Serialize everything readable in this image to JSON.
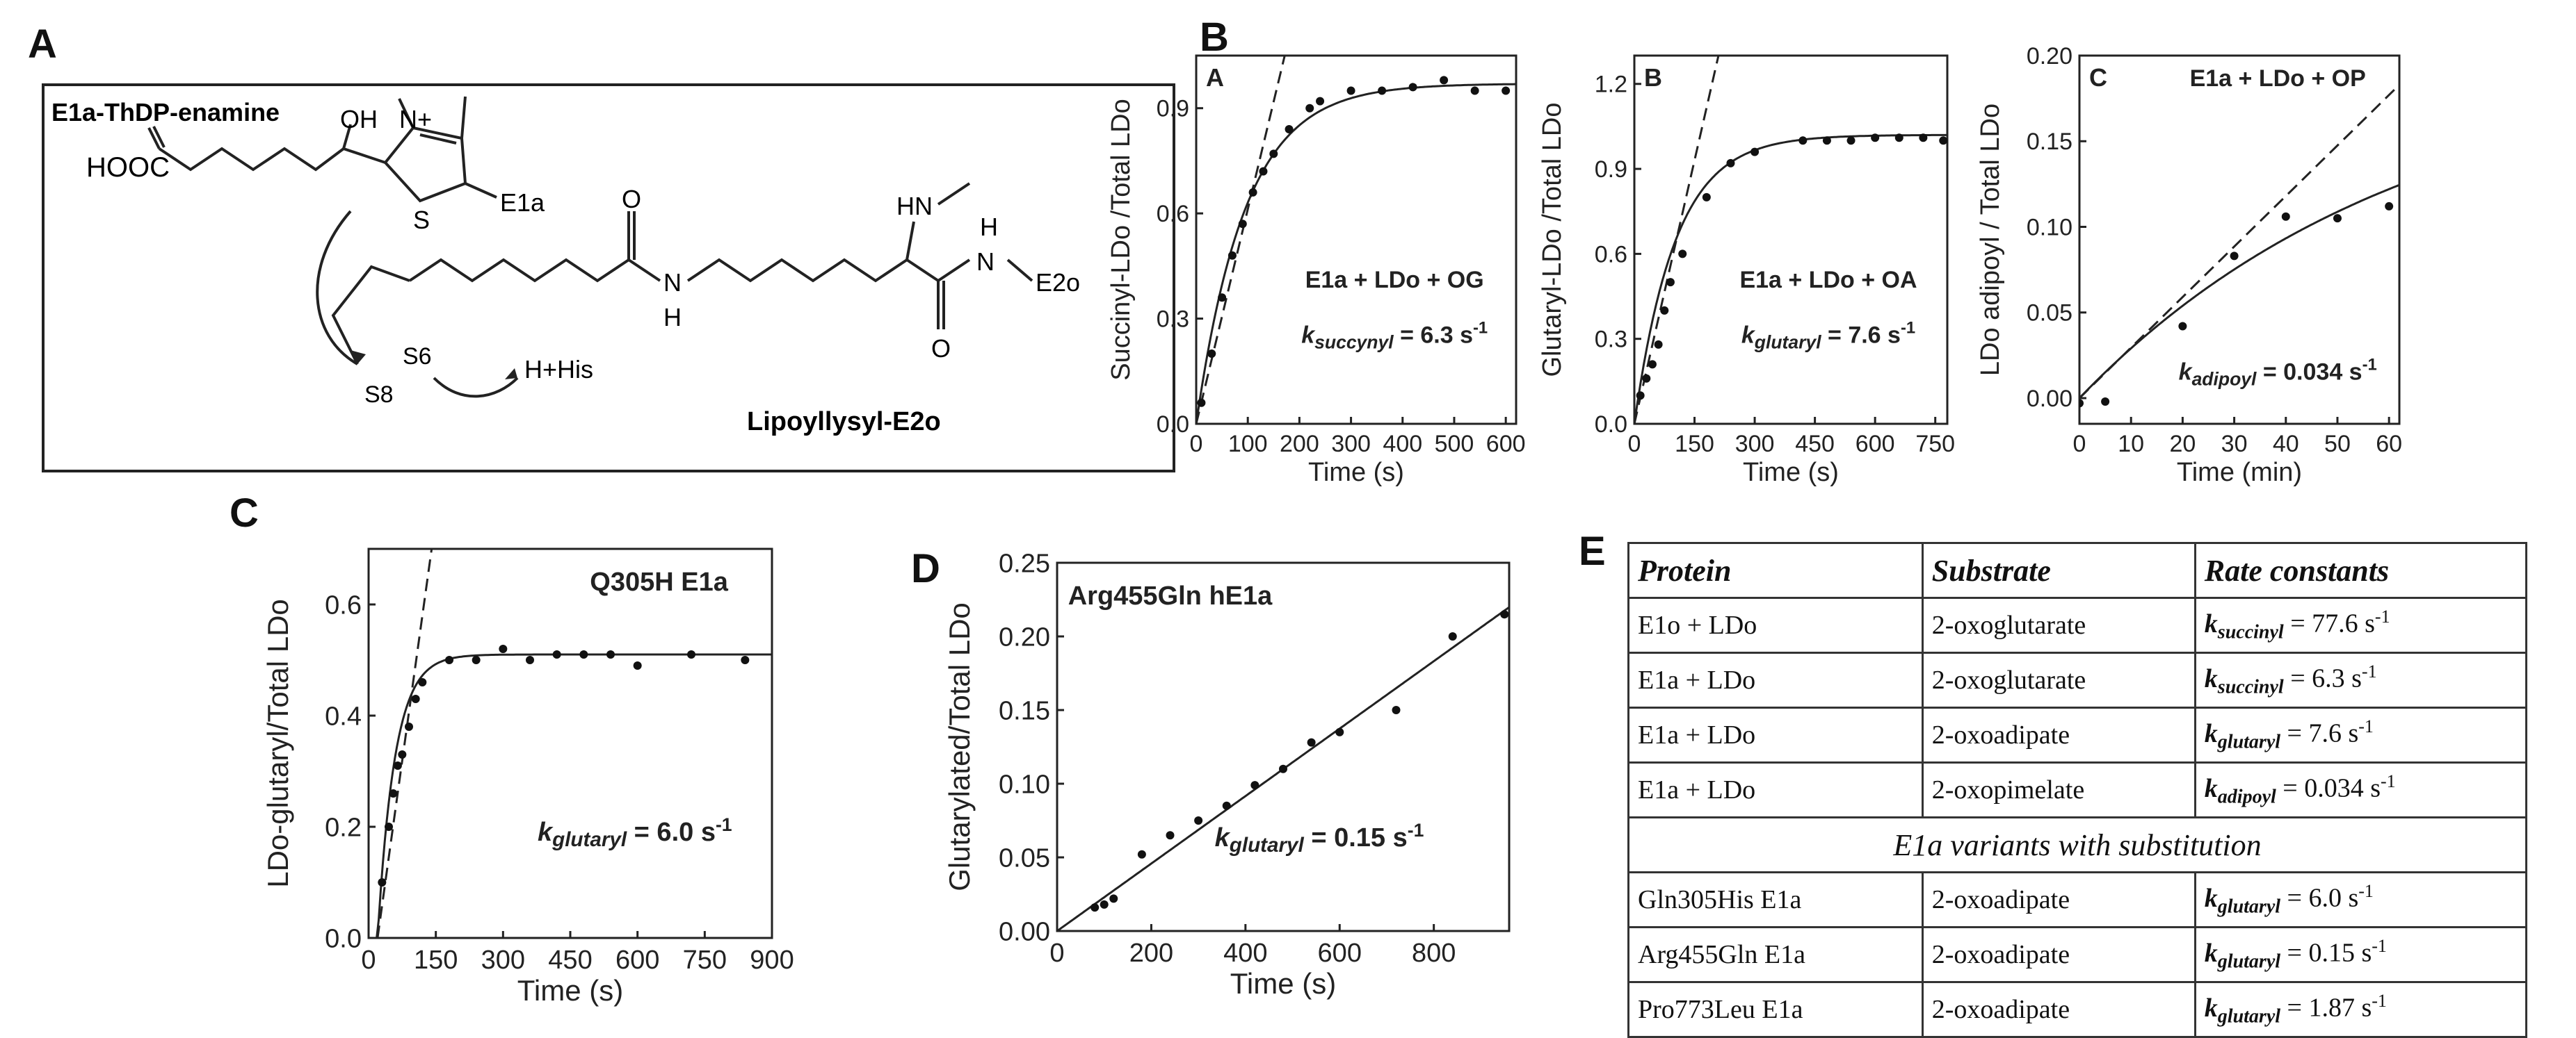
{
  "panel_labels": {
    "A": "A",
    "B": "B",
    "C": "C",
    "D": "D",
    "E": "E"
  },
  "mechanism": {
    "enamine_label": "E1a-ThDP-enamine",
    "hooc": "HOOC",
    "oh": "OH",
    "n_plus": "N+",
    "s": "S",
    "e1a": "E1a",
    "o1": "O",
    "n": "N",
    "h": "H",
    "hn": "HN",
    "o2": "O",
    "nh": "H",
    "n2": "N",
    "e2o": "E2o",
    "s8": "S8",
    "s6": "S6",
    "his": "H+His",
    "lipoyl_label": "Lipoyllysyl-E2o"
  },
  "table": {
    "headers": [
      "Protein",
      "Substrate",
      "Rate constants"
    ],
    "rows": [
      {
        "protein": "E1o + LDo",
        "substrate": "2-oxoglutarate",
        "k_sym": "k",
        "k_sub": "succinyl",
        "k_val": " = 77.6 s",
        "k_unit_exp": "-1"
      },
      {
        "protein": "E1a + LDo",
        "substrate": "2-oxoglutarate",
        "k_sym": "k",
        "k_sub": "succinyl",
        "k_val": " = 6.3 s",
        "k_unit_exp": "-1"
      },
      {
        "protein": "E1a + LDo",
        "substrate": "2-oxoadipate",
        "k_sym": "k",
        "k_sub": "glutaryl",
        "k_val": " = 7.6 s",
        "k_unit_exp": "-1"
      },
      {
        "protein": "E1a + LDo",
        "substrate": "2-oxopimelate",
        "k_sym": "k",
        "k_sub": "adipoyl",
        "k_val": " = 0.034 s",
        "k_unit_exp": "-1"
      }
    ],
    "span_row": "E1a variants with substitution",
    "variant_rows": [
      {
        "protein": "Gln305His E1a",
        "substrate": "2-oxoadipate",
        "k_sym": "k",
        "k_sub": "glutaryl",
        "k_val": " = 6.0 s",
        "k_unit_exp": "-1"
      },
      {
        "protein": "Arg455Gln E1a",
        "substrate": "2-oxoadipate",
        "k_sym": "k",
        "k_sub": "glutaryl",
        "k_val": " = 0.15 s",
        "k_unit_exp": "-1"
      },
      {
        "protein": "Pro773Leu E1a",
        "substrate": "2-oxoadipate",
        "k_sym": "k",
        "k_sub": "glutaryl",
        "k_val": " = 1.87 s",
        "k_unit_exp": "-1"
      }
    ]
  },
  "chart_data": [
    {
      "id": "B1",
      "type": "scatter",
      "inset_letter": "A",
      "xlabel": "Time (s)",
      "ylabel": "Succinyl-LDo /Total LDo",
      "xlim": [
        0,
        620
      ],
      "ylim": [
        0,
        1.05
      ],
      "xticks": [
        0,
        100,
        200,
        300,
        400,
        500,
        600
      ],
      "yticks": [
        0.0,
        0.3,
        0.6,
        0.9
      ],
      "ytick_labels": [
        "0.0",
        "0.3",
        "0.6",
        "0.9"
      ],
      "points": [
        [
          10,
          0.06
        ],
        [
          30,
          0.2
        ],
        [
          50,
          0.36
        ],
        [
          70,
          0.48
        ],
        [
          90,
          0.57
        ],
        [
          110,
          0.66
        ],
        [
          130,
          0.72
        ],
        [
          150,
          0.77
        ],
        [
          180,
          0.84
        ],
        [
          220,
          0.9
        ],
        [
          240,
          0.92
        ],
        [
          300,
          0.95
        ],
        [
          360,
          0.95
        ],
        [
          420,
          0.96
        ],
        [
          480,
          0.98
        ],
        [
          540,
          0.95
        ],
        [
          600,
          0.95
        ]
      ],
      "fit": {
        "type": "exp",
        "A": 0.97,
        "k": 0.0105
      },
      "tangent_slope": 0.00612,
      "annot1": "E1a + LDo + OG",
      "annot2_k": "k",
      "annot2_sub": "succynyl",
      "annot2_val": " = 6.3 s",
      "annot2_exp": "-1"
    },
    {
      "id": "B2",
      "type": "scatter",
      "inset_letter": "B",
      "xlabel": "Time (s)",
      "ylabel": "Glutaryl-LDo /Total LDo",
      "xlim": [
        0,
        780
      ],
      "ylim": [
        0,
        1.3
      ],
      "xticks": [
        0,
        150,
        300,
        450,
        600,
        750
      ],
      "yticks": [
        0.0,
        0.3,
        0.6,
        0.9,
        1.2
      ],
      "ytick_labels": [
        "0.0",
        "0.3",
        "0.6",
        "0.9",
        "1.2"
      ],
      "points": [
        [
          15,
          0.1
        ],
        [
          30,
          0.16
        ],
        [
          45,
          0.21
        ],
        [
          60,
          0.28
        ],
        [
          75,
          0.4
        ],
        [
          90,
          0.5
        ],
        [
          120,
          0.6
        ],
        [
          180,
          0.8
        ],
        [
          240,
          0.92
        ],
        [
          300,
          0.96
        ],
        [
          420,
          1.0
        ],
        [
          480,
          1.0
        ],
        [
          540,
          1.0
        ],
        [
          600,
          1.01
        ],
        [
          660,
          1.01
        ],
        [
          720,
          1.01
        ],
        [
          770,
          1.0
        ]
      ],
      "fit": {
        "type": "exp",
        "A": 1.02,
        "k": 0.0098
      },
      "tangent_slope": 0.0062,
      "annot1": "E1a + LDo + OA",
      "annot2_k": "k",
      "annot2_sub": "glutaryl",
      "annot2_val": " = 7.6 s",
      "annot2_exp": "-1"
    },
    {
      "id": "B3",
      "type": "scatter",
      "inset_letter": "C",
      "xlabel": "Time  (min)",
      "ylabel": "LDo adipoyl / Total LDo",
      "xlim": [
        0,
        62
      ],
      "ylim": [
        -0.015,
        0.2
      ],
      "xticks": [
        0,
        10,
        20,
        30,
        40,
        50,
        60
      ],
      "yticks": [
        0.0,
        0.05,
        0.1,
        0.15,
        0.2
      ],
      "ytick_labels": [
        "0.00",
        "0.05",
        "0.10",
        "0.15",
        "0.20"
      ],
      "points": [
        [
          0,
          -0.003
        ],
        [
          5,
          -0.002
        ],
        [
          20,
          0.042
        ],
        [
          30,
          0.083
        ],
        [
          40,
          0.106
        ],
        [
          50,
          0.105
        ],
        [
          60,
          0.112
        ]
      ],
      "fit": {
        "type": "exp",
        "A": 0.2,
        "k": 0.0157
      },
      "tangent_slope": 0.00295,
      "annot1": "E1a + LDo + OP",
      "annot2_k": "k",
      "annot2_sub": "adipoyl",
      "annot2_val": " = 0.034 s",
      "annot2_exp": "-1"
    },
    {
      "id": "C",
      "type": "scatter",
      "xlabel": "Time (s)",
      "ylabel": "LDo-glutaryl/Total LDo",
      "xlim": [
        0,
        900
      ],
      "ylim": [
        0,
        0.7
      ],
      "xticks": [
        0,
        150,
        300,
        450,
        600,
        750,
        900
      ],
      "yticks": [
        0.0,
        0.2,
        0.4,
        0.6
      ],
      "ytick_labels": [
        "0.0",
        "0.2",
        "0.4",
        "0.6"
      ],
      "points": [
        [
          30,
          0.1
        ],
        [
          45,
          0.2
        ],
        [
          55,
          0.26
        ],
        [
          65,
          0.31
        ],
        [
          75,
          0.33
        ],
        [
          90,
          0.38
        ],
        [
          105,
          0.43
        ],
        [
          120,
          0.46
        ],
        [
          180,
          0.5
        ],
        [
          240,
          0.5
        ],
        [
          300,
          0.52
        ],
        [
          360,
          0.5
        ],
        [
          420,
          0.51
        ],
        [
          480,
          0.51
        ],
        [
          540,
          0.51
        ],
        [
          600,
          0.49
        ],
        [
          720,
          0.51
        ],
        [
          840,
          0.5
        ]
      ],
      "fit": {
        "type": "exp_delay",
        "A": 0.51,
        "k": 0.026,
        "t0": 20
      },
      "tangent_slope": 0.0058,
      "tangent_x0": 20,
      "annot1": "Q305H E1a",
      "annot2_k": "k",
      "annot2_sub": "glutaryl",
      "annot2_val": " = 6.0 s",
      "annot2_exp": "-1"
    },
    {
      "id": "D",
      "type": "scatter",
      "xlabel": "Time (s)",
      "ylabel": "Glutarylated/Total LDo",
      "xlim": [
        0,
        960
      ],
      "ylim": [
        0,
        0.25
      ],
      "xticks": [
        0,
        200,
        400,
        600,
        800
      ],
      "yticks": [
        0.0,
        0.05,
        0.1,
        0.15,
        0.2,
        0.25
      ],
      "ytick_labels": [
        "0.00",
        "0.05",
        "0.10",
        "0.15",
        "0.20",
        "0.25"
      ],
      "points": [
        [
          80,
          0.016
        ],
        [
          100,
          0.018
        ],
        [
          120,
          0.022
        ],
        [
          180,
          0.052
        ],
        [
          240,
          0.065
        ],
        [
          300,
          0.075
        ],
        [
          360,
          0.085
        ],
        [
          420,
          0.099
        ],
        [
          480,
          0.11
        ],
        [
          540,
          0.128
        ],
        [
          600,
          0.135
        ],
        [
          720,
          0.15
        ],
        [
          840,
          0.2
        ],
        [
          950,
          0.215
        ]
      ],
      "fit": {
        "type": "linear",
        "m": 0.000229,
        "b": 0
      },
      "annot1": "Arg455Gln hE1a",
      "annot2_k": "k",
      "annot2_sub": "glutaryl",
      "annot2_val": " = 0.15 s",
      "annot2_exp": "-1"
    }
  ]
}
